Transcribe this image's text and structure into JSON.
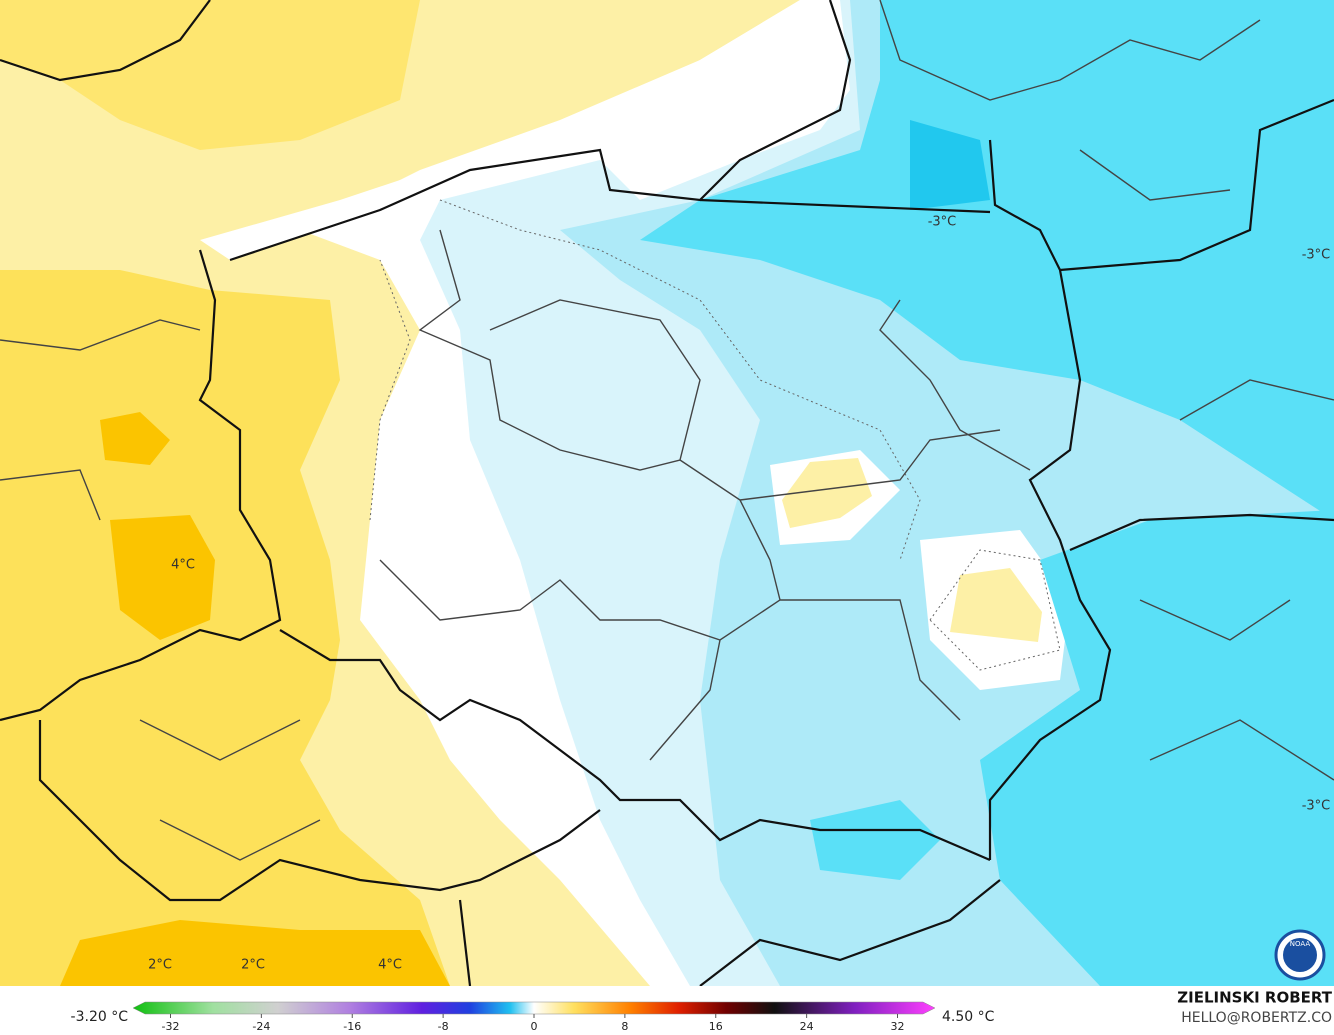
{
  "map": {
    "contour_labels": [
      "-3°C",
      "-3°C",
      "-3°C",
      "4°C",
      "2°C",
      "2°C",
      "4°C"
    ]
  },
  "colorbar": {
    "min_label": "-3.20 °C",
    "max_label": "4.50 °C",
    "ticks": [
      -32,
      -24,
      -16,
      -8,
      0,
      8,
      16,
      24,
      32
    ],
    "range": [
      -35.3,
      35.3
    ]
  },
  "credit": {
    "name": "ZIELINSKI ROBERT",
    "email": "HELLO@ROBERTZ.CO"
  },
  "logo": "NOAA"
}
